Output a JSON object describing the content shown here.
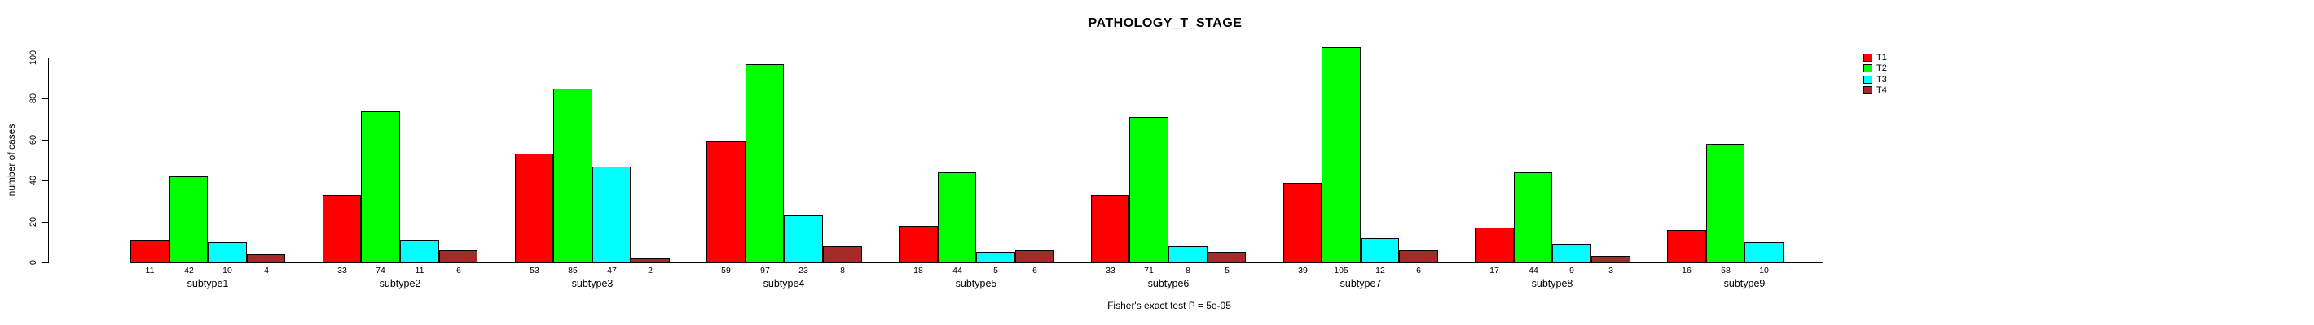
{
  "chart_data": {
    "type": "bar",
    "title": "PATHOLOGY_T_STAGE",
    "ylabel": "number of cases",
    "xlabel": "",
    "ylim": [
      0,
      100
    ],
    "y_ticks": [
      0,
      20,
      40,
      60,
      80,
      100
    ],
    "grid": false,
    "legend_position": "right",
    "bar_value_labels_shown": true,
    "annotation": "Fisher's exact test P = 5e-05",
    "categories": [
      "subtype1",
      "subtype2",
      "subtype3",
      "subtype4",
      "subtype5",
      "subtype6",
      "subtype7",
      "subtype8",
      "subtype9"
    ],
    "series": [
      {
        "name": "T1",
        "color": "#FF0000",
        "values": [
          11,
          33,
          53,
          59,
          18,
          33,
          39,
          17,
          16
        ]
      },
      {
        "name": "T2",
        "color": "#00FF00",
        "values": [
          42,
          74,
          85,
          97,
          44,
          71,
          105,
          44,
          58
        ]
      },
      {
        "name": "T3",
        "color": "#00FFFF",
        "values": [
          10,
          11,
          47,
          23,
          5,
          8,
          12,
          9,
          10
        ]
      },
      {
        "name": "T4",
        "color": "#A52A2A",
        "values": [
          4,
          6,
          2,
          8,
          6,
          5,
          6,
          3,
          0
        ]
      }
    ]
  }
}
